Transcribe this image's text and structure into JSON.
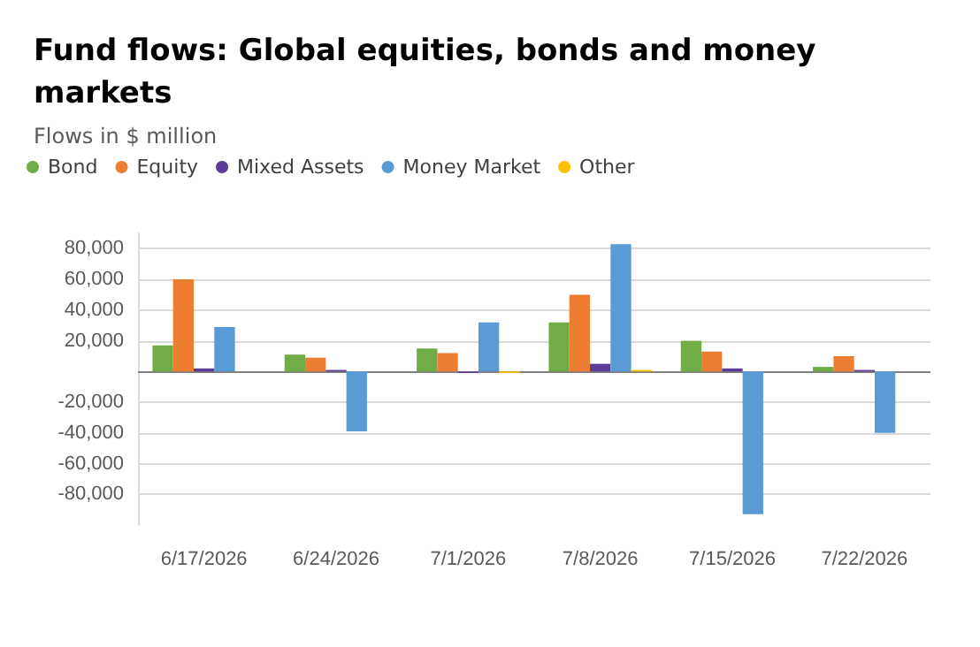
{
  "chart_data": {
    "type": "bar",
    "title": "Fund flows: Global equities, bonds and money markets",
    "subtitle": "Flows in $ million",
    "categories": [
      "6/17/2026",
      "6/24/2026",
      "7/1/2026",
      "7/8/2026",
      "7/15/2026",
      "7/22/2026"
    ],
    "series": [
      {
        "name": "Bond",
        "color": "#70ad47",
        "values": [
          17000,
          11000,
          15000,
          32000,
          20000,
          3000
        ]
      },
      {
        "name": "Equity",
        "color": "#ed7d31",
        "values": [
          60000,
          9000,
          12000,
          50000,
          13000,
          10000
        ]
      },
      {
        "name": "Mixed Assets",
        "color": "#5c3d99",
        "values": [
          2000,
          1000,
          -1000,
          5000,
          2000,
          1000
        ]
      },
      {
        "name": "Money Market",
        "color": "#5b9bd5",
        "values": [
          29000,
          -39000,
          32000,
          83000,
          -93000,
          -40000
        ]
      },
      {
        "name": "Other",
        "color": "#ffc000",
        "values": [
          0,
          0,
          -1000,
          1000,
          0,
          0
        ]
      }
    ],
    "ylim": [
      -100000,
      90000
    ],
    "yticks": [
      {
        "value": -80000,
        "label": "-80,000"
      },
      {
        "value": -60000,
        "label": "-60,000"
      },
      {
        "value": -40000,
        "label": "-40,000"
      },
      {
        "value": -20000,
        "label": "-20,000"
      },
      {
        "value": 0,
        "label": null
      },
      {
        "value": 20000,
        "label": "20,000"
      },
      {
        "value": 40000,
        "label": "40,000"
      },
      {
        "value": 60000,
        "label": "60,000"
      },
      {
        "value": 80000,
        "label": "80,000"
      }
    ],
    "grid": "y",
    "legend": "top left",
    "marker": "circle"
  }
}
